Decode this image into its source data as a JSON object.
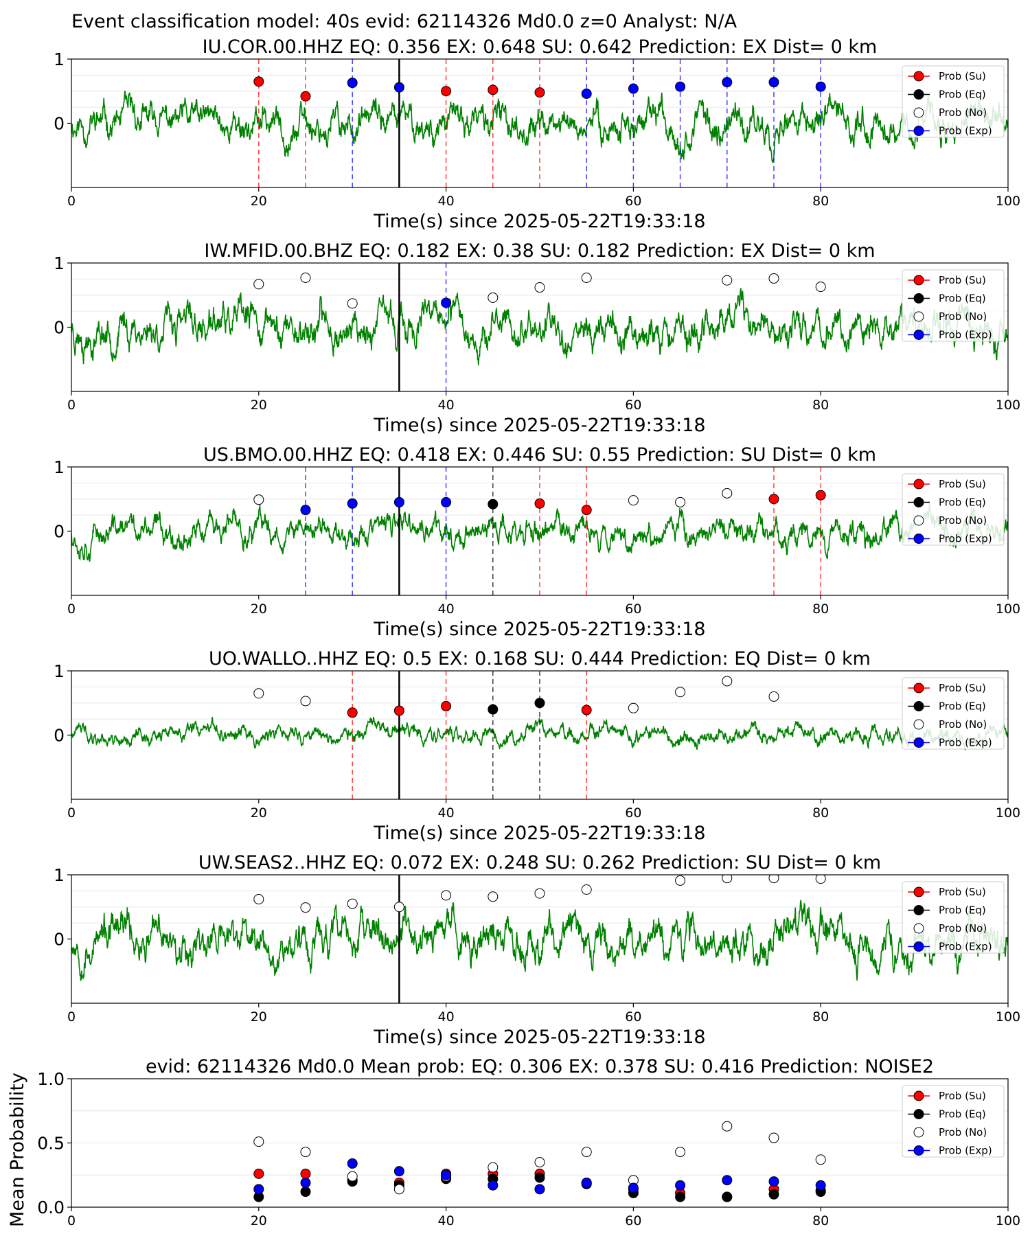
{
  "figure": {
    "suptitle": "Event classification model: 40s evid: 62114326 Md0.0 z=0 Analyst: N/A"
  },
  "legend": [
    "Prob (Su)",
    "Prob (Eq)",
    "Prob (No)",
    "Prob (Exp)"
  ],
  "colors": {
    "waveform": "#008000",
    "su": "#ff0000",
    "eq": "#000000",
    "no": "#ffffff",
    "exp": "#0000ff",
    "pick": "#000000"
  },
  "chart_data": [
    {
      "type": "scatter",
      "title": "IU.COR.00.HHZ   EQ: 0.356  EX: 0.648  SU: 0.642   Prediction: EX    Dist= 0 km",
      "xlabel": "Time(s) since 2025-05-22T19:33:18",
      "ylabel": "",
      "xlim": [
        0,
        100
      ],
      "ylim": [
        -1,
        1
      ],
      "xticks": [
        "0",
        "20",
        "40",
        "60",
        "80",
        "100"
      ],
      "yticks": [
        "0",
        "1"
      ],
      "pick_time": 35,
      "waveform": {
        "noise_amplitude": 0.32,
        "seed": 11
      },
      "points": [
        {
          "x": 20,
          "y": 0.65,
          "cls": "su"
        },
        {
          "x": 25,
          "y": 0.42,
          "cls": "su"
        },
        {
          "x": 30,
          "y": 0.63,
          "cls": "exp"
        },
        {
          "x": 35,
          "y": 0.56,
          "cls": "exp"
        },
        {
          "x": 40,
          "y": 0.5,
          "cls": "su"
        },
        {
          "x": 45,
          "y": 0.52,
          "cls": "su"
        },
        {
          "x": 50,
          "y": 0.48,
          "cls": "su"
        },
        {
          "x": 55,
          "y": 0.46,
          "cls": "exp"
        },
        {
          "x": 60,
          "y": 0.54,
          "cls": "exp"
        },
        {
          "x": 65,
          "y": 0.57,
          "cls": "exp"
        },
        {
          "x": 70,
          "y": 0.64,
          "cls": "exp"
        },
        {
          "x": 75,
          "y": 0.64,
          "cls": "exp"
        },
        {
          "x": 80,
          "y": 0.57,
          "cls": "exp"
        }
      ]
    },
    {
      "type": "scatter",
      "title": "IW.MFID.00.BHZ   EQ: 0.182  EX: 0.38  SU: 0.182   Prediction: EX    Dist= 0 km",
      "xlabel": "Time(s) since 2025-05-22T19:33:18",
      "ylabel": "",
      "xlim": [
        0,
        100
      ],
      "ylim": [
        -1,
        1
      ],
      "xticks": [
        "0",
        "20",
        "40",
        "60",
        "80",
        "100"
      ],
      "yticks": [
        "0",
        "1"
      ],
      "pick_time": 35,
      "waveform": {
        "noise_amplitude": 0.36,
        "seed": 23
      },
      "points": [
        {
          "x": 20,
          "y": 0.67,
          "cls": "no"
        },
        {
          "x": 25,
          "y": 0.77,
          "cls": "no"
        },
        {
          "x": 30,
          "y": 0.37,
          "cls": "no"
        },
        {
          "x": 40,
          "y": 0.38,
          "cls": "exp"
        },
        {
          "x": 45,
          "y": 0.46,
          "cls": "no"
        },
        {
          "x": 50,
          "y": 0.62,
          "cls": "no"
        },
        {
          "x": 55,
          "y": 0.77,
          "cls": "no"
        },
        {
          "x": 70,
          "y": 0.73,
          "cls": "no"
        },
        {
          "x": 75,
          "y": 0.76,
          "cls": "no"
        },
        {
          "x": 80,
          "y": 0.63,
          "cls": "no"
        }
      ]
    },
    {
      "type": "scatter",
      "title": "US.BMO.00.HHZ   EQ: 0.418  EX: 0.446  SU: 0.55   Prediction: SU    Dist= 0 km",
      "xlabel": "Time(s) since 2025-05-22T19:33:18",
      "ylabel": "",
      "xlim": [
        0,
        100
      ],
      "ylim": [
        -1,
        1
      ],
      "xticks": [
        "0",
        "20",
        "40",
        "60",
        "80",
        "100"
      ],
      "yticks": [
        "0",
        "1"
      ],
      "pick_time": 35,
      "waveform": {
        "noise_amplitude": 0.27,
        "seed": 37
      },
      "points": [
        {
          "x": 20,
          "y": 0.49,
          "cls": "no"
        },
        {
          "x": 25,
          "y": 0.33,
          "cls": "exp"
        },
        {
          "x": 30,
          "y": 0.43,
          "cls": "exp"
        },
        {
          "x": 35,
          "y": 0.45,
          "cls": "exp"
        },
        {
          "x": 40,
          "y": 0.45,
          "cls": "exp"
        },
        {
          "x": 45,
          "y": 0.42,
          "cls": "eq"
        },
        {
          "x": 50,
          "y": 0.43,
          "cls": "su"
        },
        {
          "x": 55,
          "y": 0.33,
          "cls": "su"
        },
        {
          "x": 60,
          "y": 0.48,
          "cls": "no"
        },
        {
          "x": 65,
          "y": 0.45,
          "cls": "no"
        },
        {
          "x": 70,
          "y": 0.59,
          "cls": "no"
        },
        {
          "x": 75,
          "y": 0.5,
          "cls": "su"
        },
        {
          "x": 80,
          "y": 0.56,
          "cls": "su"
        }
      ]
    },
    {
      "type": "scatter",
      "title": "UO.WALLO..HHZ   EQ: 0.5  EX: 0.168  SU: 0.444   Prediction: EQ    Dist= 0 km",
      "xlabel": "Time(s) since 2025-05-22T19:33:18",
      "ylabel": "",
      "xlim": [
        0,
        100
      ],
      "ylim": [
        -1,
        1
      ],
      "xticks": [
        "0",
        "20",
        "40",
        "60",
        "80",
        "100"
      ],
      "yticks": [
        "0",
        "1"
      ],
      "pick_time": 35,
      "waveform": {
        "noise_amplitude": 0.16,
        "seed": 41
      },
      "points": [
        {
          "x": 20,
          "y": 0.65,
          "cls": "no"
        },
        {
          "x": 25,
          "y": 0.53,
          "cls": "no"
        },
        {
          "x": 30,
          "y": 0.35,
          "cls": "su"
        },
        {
          "x": 35,
          "y": 0.38,
          "cls": "su"
        },
        {
          "x": 40,
          "y": 0.45,
          "cls": "su"
        },
        {
          "x": 45,
          "y": 0.4,
          "cls": "eq"
        },
        {
          "x": 50,
          "y": 0.5,
          "cls": "eq"
        },
        {
          "x": 55,
          "y": 0.39,
          "cls": "su"
        },
        {
          "x": 60,
          "y": 0.42,
          "cls": "no"
        },
        {
          "x": 65,
          "y": 0.67,
          "cls": "no"
        },
        {
          "x": 70,
          "y": 0.84,
          "cls": "no"
        },
        {
          "x": 75,
          "y": 0.6,
          "cls": "no"
        }
      ]
    },
    {
      "type": "scatter",
      "title": "UW.SEAS2..HHZ   EQ: 0.072  EX: 0.248  SU: 0.262   Prediction: SU    Dist= 0 km",
      "xlabel": "Time(s) since 2025-05-22T19:33:18",
      "ylabel": "",
      "xlim": [
        0,
        100
      ],
      "ylim": [
        -1,
        1
      ],
      "xticks": [
        "0",
        "20",
        "40",
        "60",
        "80",
        "100"
      ],
      "yticks": [
        "0",
        "1"
      ],
      "pick_time": 35,
      "waveform": {
        "noise_amplitude": 0.38,
        "seed": 53
      },
      "points": [
        {
          "x": 20,
          "y": 0.62,
          "cls": "no"
        },
        {
          "x": 25,
          "y": 0.49,
          "cls": "no"
        },
        {
          "x": 30,
          "y": 0.55,
          "cls": "no"
        },
        {
          "x": 35,
          "y": 0.5,
          "cls": "no"
        },
        {
          "x": 40,
          "y": 0.68,
          "cls": "no"
        },
        {
          "x": 45,
          "y": 0.66,
          "cls": "no"
        },
        {
          "x": 50,
          "y": 0.71,
          "cls": "no"
        },
        {
          "x": 55,
          "y": 0.77,
          "cls": "no"
        },
        {
          "x": 65,
          "y": 0.91,
          "cls": "no"
        },
        {
          "x": 70,
          "y": 0.95,
          "cls": "no"
        },
        {
          "x": 75,
          "y": 0.95,
          "cls": "no"
        },
        {
          "x": 80,
          "y": 0.94,
          "cls": "no"
        }
      ]
    },
    {
      "type": "scatter",
      "title": "evid: 62114326  Md0.0   Mean prob:   EQ: 0.306  EX: 0.378  SU: 0.416   Prediction: NOISE2",
      "xlabel": "",
      "ylabel": "Mean Probability",
      "xlim": [
        0,
        100
      ],
      "ylim": [
        0,
        1
      ],
      "xticks": [
        "0",
        "20",
        "40",
        "60",
        "80",
        "100"
      ],
      "yticks": [
        "0.0",
        "0.5",
        "1.0"
      ],
      "series": [
        {
          "name": "Prob (Su)",
          "cls": "su",
          "x": [
            20,
            25,
            30,
            35,
            40,
            45,
            50,
            55,
            60,
            65,
            70,
            75,
            80
          ],
          "y": [
            0.26,
            0.26,
            0.21,
            0.19,
            0.26,
            0.26,
            0.26,
            0.19,
            0.14,
            0.11,
            0.08,
            0.14,
            0.13
          ]
        },
        {
          "name": "Prob (Eq)",
          "cls": "eq",
          "x": [
            20,
            25,
            30,
            35,
            40,
            45,
            50,
            55,
            60,
            65,
            70,
            75,
            80
          ],
          "y": [
            0.08,
            0.12,
            0.2,
            0.17,
            0.22,
            0.22,
            0.23,
            0.18,
            0.11,
            0.08,
            0.08,
            0.1,
            0.12
          ]
        },
        {
          "name": "Prob (No)",
          "cls": "no",
          "x": [
            20,
            25,
            30,
            35,
            40,
            45,
            50,
            55,
            60,
            65,
            70,
            75,
            80
          ],
          "y": [
            0.51,
            0.43,
            0.24,
            0.14,
            0.24,
            0.31,
            0.35,
            0.43,
            0.21,
            0.43,
            0.63,
            0.54,
            0.37
          ]
        },
        {
          "name": "Prob (Exp)",
          "cls": "exp",
          "x": [
            20,
            25,
            30,
            35,
            40,
            45,
            50,
            55,
            60,
            65,
            70,
            75,
            80
          ],
          "y": [
            0.14,
            0.19,
            0.34,
            0.28,
            0.25,
            0.17,
            0.14,
            0.19,
            0.15,
            0.17,
            0.21,
            0.2,
            0.17
          ]
        }
      ]
    }
  ]
}
